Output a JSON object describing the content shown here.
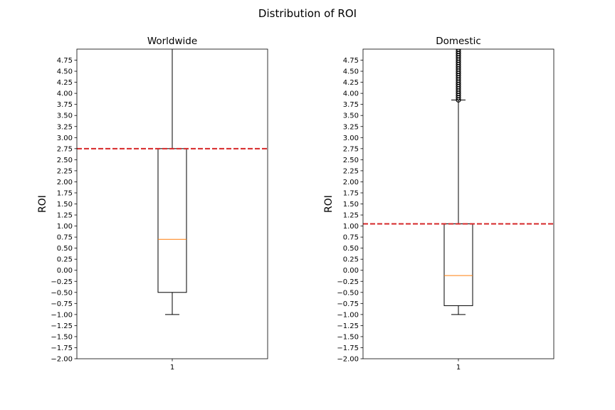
{
  "chart_data": {
    "type": "box",
    "suptitle": "Distribution of ROI",
    "yticks": [
      "−2.00",
      "−1.75",
      "−1.50",
      "−1.25",
      "−1.00",
      "−0.75",
      "−0.50",
      "−0.25",
      "0.00",
      "0.25",
      "0.50",
      "0.75",
      "1.00",
      "1.25",
      "1.50",
      "1.75",
      "2.00",
      "2.25",
      "2.50",
      "2.75",
      "3.00",
      "3.25",
      "3.50",
      "3.75",
      "4.00",
      "4.25",
      "4.50",
      "4.75"
    ],
    "subplots": [
      {
        "title": "Worldwide",
        "ylabel": "ROI",
        "xtick": "1",
        "ylim": [
          -2.0,
          5.0
        ],
        "box": {
          "whisker_low": -1.0,
          "q1": -0.5,
          "median": 0.7,
          "q3": 2.75,
          "whisker_high": 5.0
        },
        "outliers": [],
        "threshold": 2.75
      },
      {
        "title": "Domestic",
        "ylabel": "ROI",
        "xtick": "1",
        "ylim": [
          -2.0,
          5.0
        ],
        "box": {
          "whisker_low": -1.0,
          "q1": -0.8,
          "median": -0.12,
          "q3": 1.05,
          "whisker_high": 3.85
        },
        "outliers": [
          3.85,
          3.9,
          3.95,
          4.0,
          4.05,
          4.1,
          4.15,
          4.2,
          4.25,
          4.3,
          4.35,
          4.4,
          4.45,
          4.5,
          4.55,
          4.6,
          4.65,
          4.7,
          4.75,
          4.8,
          4.85,
          4.9,
          4.95,
          5.0
        ],
        "threshold": 1.05
      }
    ],
    "colors": {
      "box": "#000000",
      "median": "#ff7f0e",
      "threshold": "#d62728"
    },
    "grid": false
  }
}
